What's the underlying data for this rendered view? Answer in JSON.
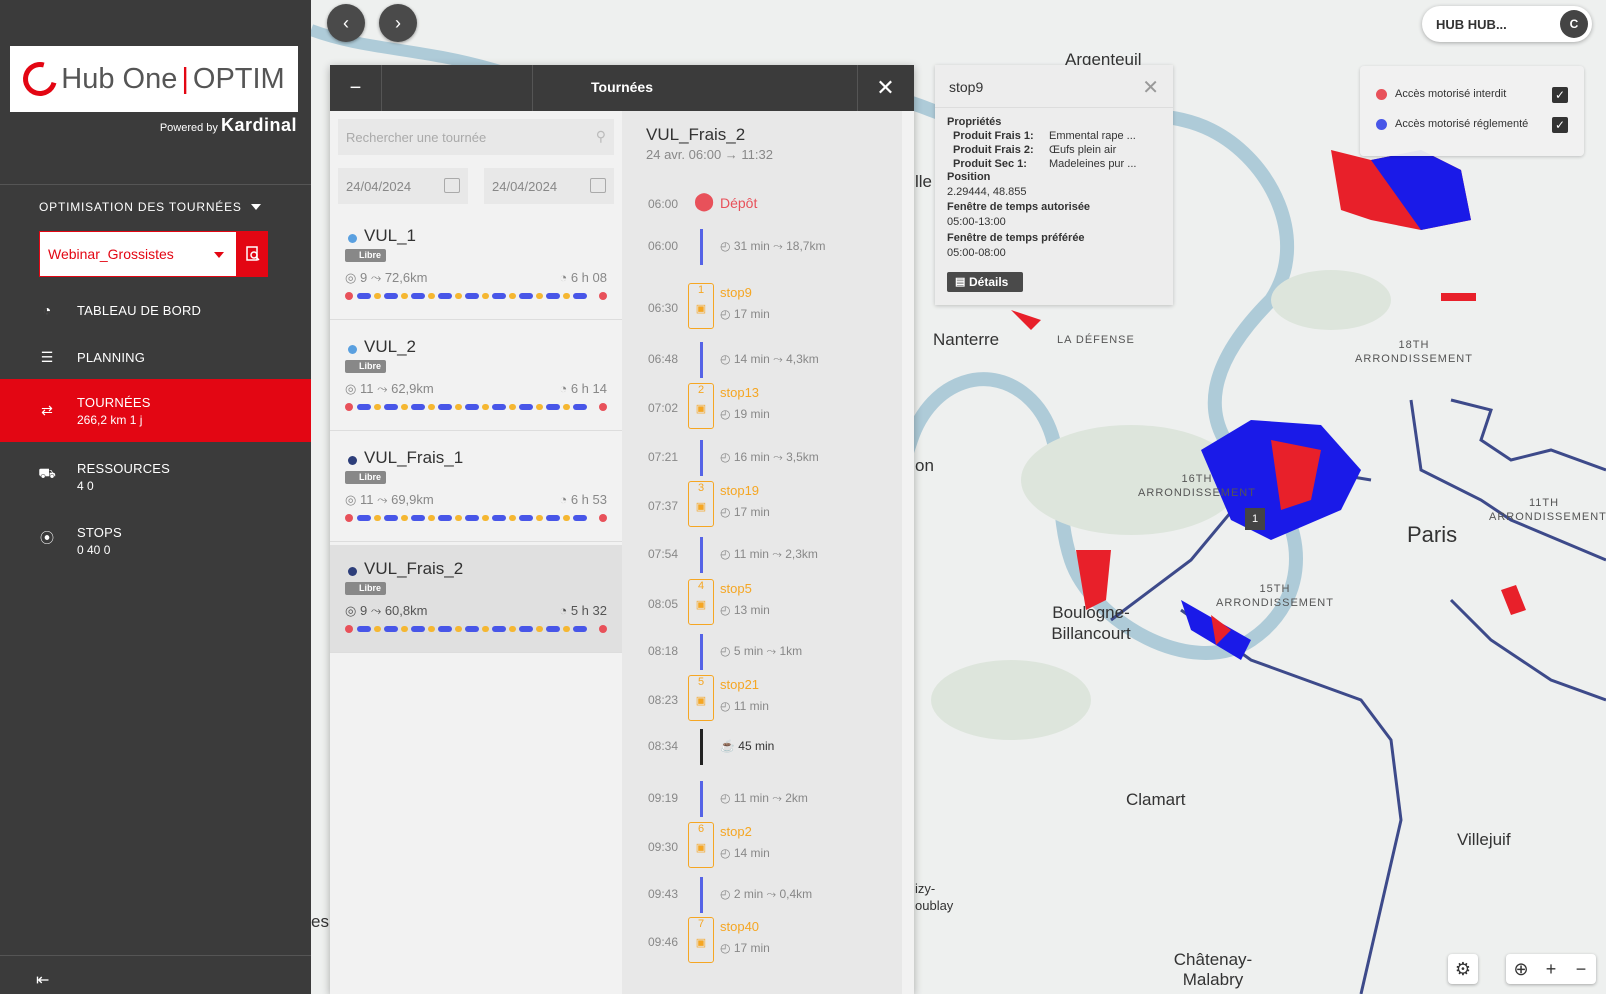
{
  "brand": {
    "name": "Hub One",
    "product": "OPTIM",
    "powered_by": "Powered by",
    "powered_brand": "Kardinal"
  },
  "sidebar": {
    "section_title": "OPTIMISATION DES TOURNÉES",
    "project": "Webinar_Grossistes",
    "nav": [
      {
        "label": "TABLEAU DE BORD",
        "icon": "dashboard-icon"
      },
      {
        "label": "PLANNING",
        "icon": "list-icon"
      },
      {
        "label": "TOURNÉES",
        "icon": "route-icon",
        "sub": "266,2 km   1 j",
        "active": true
      },
      {
        "label": "RESSOURCES",
        "icon": "truck-icon",
        "sub": "4   0"
      },
      {
        "label": "STOPS",
        "icon": "pin-icon",
        "sub": "0   40   0"
      }
    ]
  },
  "header": {
    "user_label": "HUB  HUB...",
    "avatar": "C"
  },
  "legend": {
    "items": [
      "Accès motorisé interdit",
      "Accès motorisé réglementé"
    ],
    "colors": [
      "#e8515a",
      "#4856e8"
    ]
  },
  "panel": {
    "title": "Tournées",
    "search_placeholder": "Rechercher une tournée",
    "date_from": "24/04/2024",
    "date_to": "24/04/2024",
    "badge": "Libre",
    "tours": [
      {
        "name": "VUL_1",
        "stops": "9",
        "km": "72,6km",
        "duration": "6 h 08",
        "dot": "#5aa0e0"
      },
      {
        "name": "VUL_2",
        "stops": "11",
        "km": "62,9km",
        "duration": "6 h 14",
        "dot": "#5aa0e0"
      },
      {
        "name": "VUL_Frais_1",
        "stops": "11",
        "km": "69,9km",
        "duration": "6 h 53",
        "dot": "#2d3e7a"
      },
      {
        "name": "VUL_Frais_2",
        "stops": "9",
        "km": "60,8km",
        "duration": "5 h 32",
        "dot": "#2d3e7a"
      }
    ],
    "detail": {
      "title": "VUL_Frais_2",
      "subtitle": "24 avr. 06:00 → 11:32",
      "depot_time": "06:00",
      "depot_label": "Dépôt",
      "timeline": [
        {
          "kind": "travel",
          "time": "06:00",
          "dur": "31 min",
          "dist": "18,7km"
        },
        {
          "kind": "stop",
          "time": "06:30",
          "num": "1",
          "name": "stop9",
          "dur": "17 min"
        },
        {
          "kind": "travel",
          "time": "06:48",
          "dur": "14 min",
          "dist": "4,3km"
        },
        {
          "kind": "stop",
          "time": "07:02",
          "num": "2",
          "name": "stop13",
          "dur": "19 min"
        },
        {
          "kind": "travel",
          "time": "07:21",
          "dur": "16 min",
          "dist": "3,5km"
        },
        {
          "kind": "stop",
          "time": "07:37",
          "num": "3",
          "name": "stop19",
          "dur": "17 min"
        },
        {
          "kind": "travel",
          "time": "07:54",
          "dur": "11 min",
          "dist": "2,3km"
        },
        {
          "kind": "stop",
          "time": "08:05",
          "num": "4",
          "name": "stop5",
          "dur": "13 min"
        },
        {
          "kind": "travel",
          "time": "08:18",
          "dur": "5 min",
          "dist": "1km"
        },
        {
          "kind": "stop",
          "time": "08:23",
          "num": "5",
          "name": "stop21",
          "dur": "11 min"
        },
        {
          "kind": "break",
          "time": "08:34",
          "dur": "45 min"
        },
        {
          "kind": "travel",
          "time": "09:19",
          "dur": "11 min",
          "dist": "2km"
        },
        {
          "kind": "stop",
          "time": "09:30",
          "num": "6",
          "name": "stop2",
          "dur": "14 min"
        },
        {
          "kind": "travel",
          "time": "09:43",
          "dur": "2 min",
          "dist": "0,4km"
        },
        {
          "kind": "stop",
          "time": "09:46",
          "num": "7",
          "name": "stop40",
          "dur": "17 min"
        }
      ]
    }
  },
  "popup": {
    "title": "stop9",
    "properties_label": "Propriétés",
    "props": [
      {
        "k": "Produit Frais 1:",
        "v": "Emmental rape ..."
      },
      {
        "k": "Produit Frais 2:",
        "v": "Œufs plein air"
      },
      {
        "k": "Produit Sec 1:",
        "v": "Madeleines pur ..."
      }
    ],
    "position_label": "Position",
    "position": "2.29444, 48.855",
    "window_label": "Fenêtre de temps autorisée",
    "window": "05:00-13:00",
    "pref_label": "Fenêtre de temps préférée",
    "pref": "05:00-08:00",
    "details_btn": "Détails"
  },
  "map": {
    "places": [
      "Argenteuil",
      "Nanterre",
      "LA DÉFENSE",
      "18TH ARRONDISSEMENT",
      "16TH ARRONDISSEMENT",
      "Paris",
      "11TH ARRONDISSEMENT",
      "15TH ARRONDISSEMENT",
      "Boulogne-Billancourt",
      "Clamart",
      "Villejuif",
      "Châtenay-Malabry",
      "lle",
      "on",
      "es",
      "izy-oublay"
    ],
    "marker": "1"
  }
}
